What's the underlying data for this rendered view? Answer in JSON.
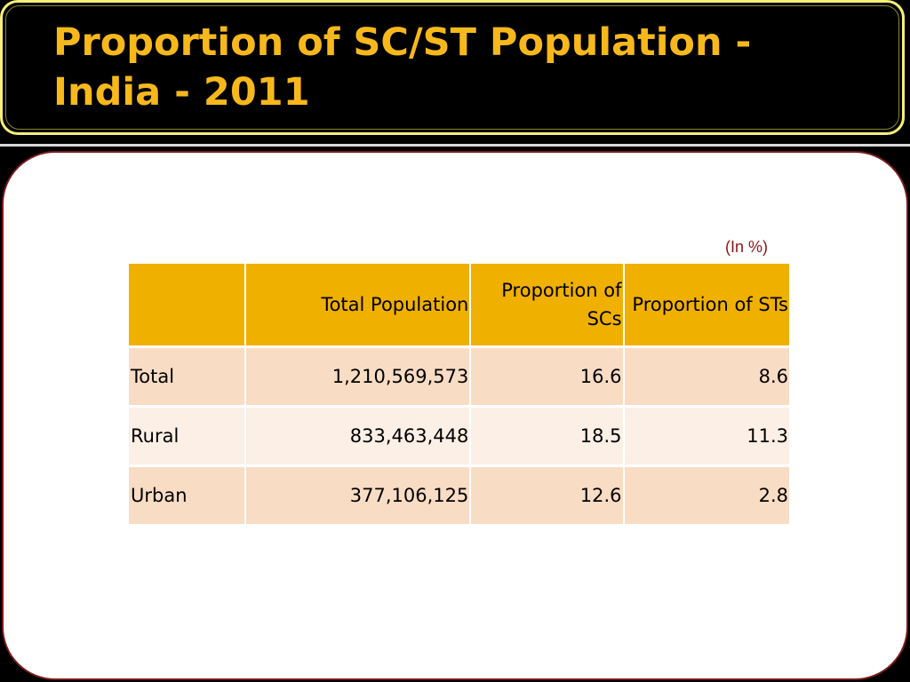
{
  "slide": {
    "title": "Proportion of SC/ST Population - India - 2011",
    "unit_note": "(In %)"
  },
  "table": {
    "headers": [
      "",
      "Total Population",
      "Proportion of SCs",
      "Proportion of STs"
    ],
    "rows": [
      {
        "label": "Total",
        "total_population": "1,210,569,573",
        "prop_sc": "16.6",
        "prop_st": "8.6"
      },
      {
        "label": "Rural",
        "total_population": "833,463,448",
        "prop_sc": "18.5",
        "prop_st": "11.3"
      },
      {
        "label": "Urban",
        "total_population": "377,106,125",
        "prop_sc": "12.6",
        "prop_st": "2.8"
      }
    ]
  },
  "colors": {
    "title_text": "#f7b81c",
    "title_border": "#f6ef7a",
    "header_fill": "#f0b000",
    "row_fill_dark": "#f9dcc4",
    "row_fill_light": "#fcefe6",
    "content_border": "#7a1a1a",
    "unit_note": "#8b1414"
  }
}
